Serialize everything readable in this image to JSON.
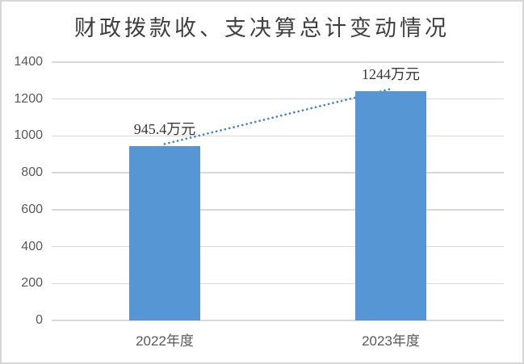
{
  "frame": {
    "background": "#ffffff",
    "border_color": "#d6d6d6"
  },
  "chart_data": {
    "type": "bar",
    "title": "财政拨款收、支决算总计变动情况",
    "categories": [
      "2022年度",
      "2023年度"
    ],
    "values": [
      945.4,
      1244
    ],
    "point_labels": [
      "945.4万元",
      "1244万元"
    ],
    "unit": "万元",
    "xlabel": "",
    "ylabel": "",
    "ylim": [
      0,
      1400
    ],
    "yticks": [
      0,
      200,
      400,
      600,
      800,
      1000,
      1200,
      1400
    ],
    "grid": true,
    "legend": "none",
    "bar_color": "#5796d5",
    "trendline": {
      "style": "dotted",
      "color": "#4a86c8",
      "from_value": 945.4,
      "to_value": 1244
    },
    "gridline_color": "#d9d9d9",
    "axis_text_color": "#595959",
    "title_color": "#3f3f3f"
  }
}
